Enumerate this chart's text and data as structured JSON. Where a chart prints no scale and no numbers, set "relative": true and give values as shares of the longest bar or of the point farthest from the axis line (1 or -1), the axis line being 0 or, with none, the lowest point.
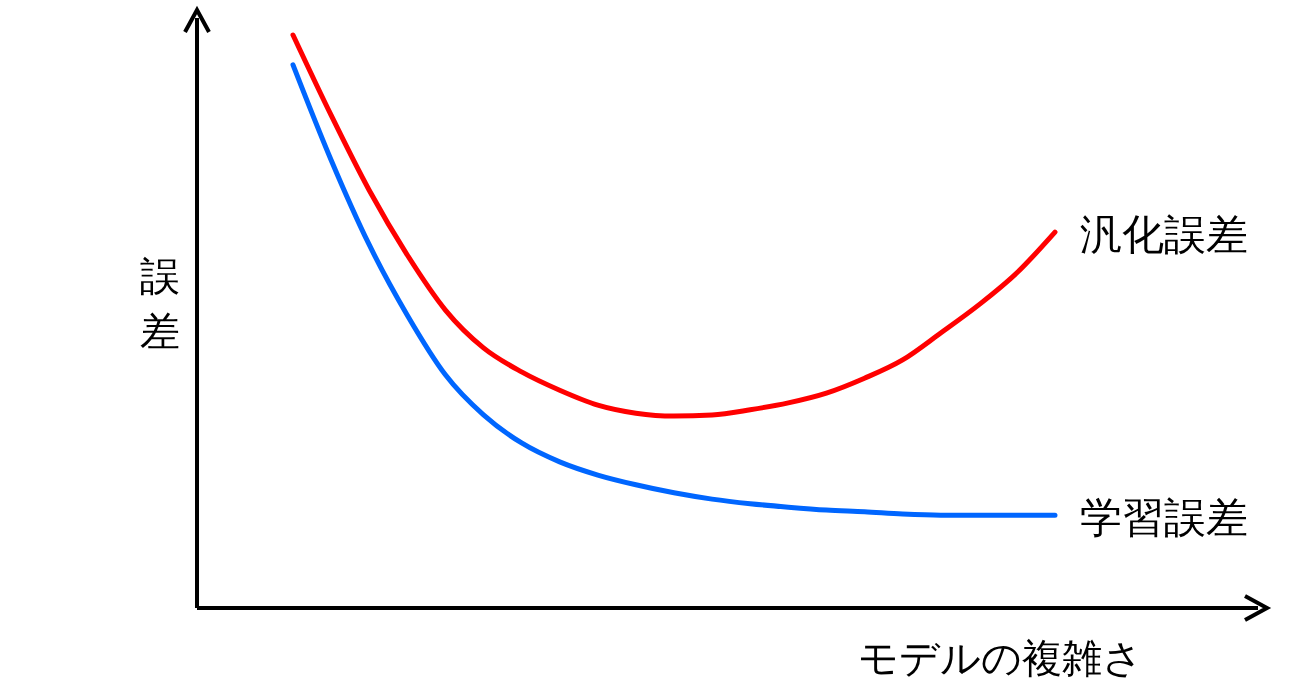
{
  "chart_data": {
    "type": "line",
    "relative": true,
    "xlabel": "モデルの複雑さ",
    "ylabel": "誤差",
    "legend": false,
    "marker": "none",
    "categories": [
      null,
      null,
      null,
      null,
      null,
      null,
      null,
      null,
      null,
      null,
      null,
      null,
      null,
      null,
      null,
      null,
      null,
      null,
      null,
      null,
      null
    ],
    "series": [
      {
        "name": "汎化誤差",
        "color": "#ff0000",
        "values": [
          1,
          0.86,
          0.729,
          0.616,
          0.52,
          0.454,
          0.412,
          0.38,
          0.354,
          0.34,
          0.335,
          0.337,
          0.346,
          0.358,
          0.375,
          0.401,
          0.433,
          0.48,
          0.529,
          0.585,
          0.656
        ]
      },
      {
        "name": "学習誤差",
        "color": "#0066ff",
        "values": [
          0.948,
          0.782,
          0.634,
          0.511,
          0.407,
          0.337,
          0.288,
          0.255,
          0.232,
          0.215,
          0.201,
          0.19,
          0.182,
          0.176,
          0.171,
          0.168,
          0.164,
          0.162,
          0.162,
          0.162,
          0.162
        ]
      }
    ]
  }
}
